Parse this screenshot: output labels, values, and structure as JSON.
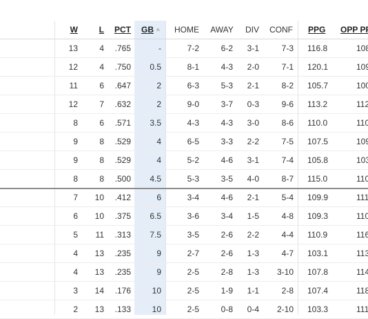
{
  "headers": {
    "w": "W",
    "l": "L",
    "pct": "PCT",
    "gb": "GB",
    "home": "HOME",
    "away": "AWAY",
    "div": "DIV",
    "conf": "CONF",
    "ppg": "PPG",
    "opp_ppg": "OPP PP"
  },
  "sort_icon": "^",
  "rows": [
    {
      "w": "13",
      "l": "4",
      "pct": ".765",
      "gb": "-",
      "home": "7-2",
      "away": "6-2",
      "div": "3-1",
      "conf": "7-3",
      "ppg": "116.8",
      "opp": "108"
    },
    {
      "w": "12",
      "l": "4",
      "pct": ".750",
      "gb": "0.5",
      "home": "8-1",
      "away": "4-3",
      "div": "2-0",
      "conf": "7-1",
      "ppg": "120.1",
      "opp": "109"
    },
    {
      "w": "11",
      "l": "6",
      "pct": ".647",
      "gb": "2",
      "home": "6-3",
      "away": "5-3",
      "div": "2-1",
      "conf": "8-2",
      "ppg": "105.7",
      "opp": "100"
    },
    {
      "w": "12",
      "l": "7",
      "pct": ".632",
      "gb": "2",
      "home": "9-0",
      "away": "3-7",
      "div": "0-3",
      "conf": "9-6",
      "ppg": "113.2",
      "opp": "112"
    },
    {
      "w": "8",
      "l": "6",
      "pct": ".571",
      "gb": "3.5",
      "home": "4-3",
      "away": "4-3",
      "div": "3-0",
      "conf": "8-6",
      "ppg": "110.0",
      "opp": "110"
    },
    {
      "w": "9",
      "l": "8",
      "pct": ".529",
      "gb": "4",
      "home": "6-5",
      "away": "3-3",
      "div": "2-2",
      "conf": "7-5",
      "ppg": "107.5",
      "opp": "109"
    },
    {
      "w": "9",
      "l": "8",
      "pct": ".529",
      "gb": "4",
      "home": "5-2",
      "away": "4-6",
      "div": "3-1",
      "conf": "7-4",
      "ppg": "105.8",
      "opp": "103"
    },
    {
      "w": "8",
      "l": "8",
      "pct": ".500",
      "gb": "4.5",
      "home": "5-3",
      "away": "3-5",
      "div": "4-0",
      "conf": "8-7",
      "ppg": "115.0",
      "opp": "110"
    },
    {
      "w": "7",
      "l": "10",
      "pct": ".412",
      "gb": "6",
      "home": "3-4",
      "away": "4-6",
      "div": "2-1",
      "conf": "5-4",
      "ppg": "109.9",
      "opp": "111"
    },
    {
      "w": "6",
      "l": "10",
      "pct": ".375",
      "gb": "6.5",
      "home": "3-6",
      "away": "3-4",
      "div": "1-5",
      "conf": "4-8",
      "ppg": "109.3",
      "opp": "110"
    },
    {
      "w": "5",
      "l": "11",
      "pct": ".313",
      "gb": "7.5",
      "home": "3-5",
      "away": "2-6",
      "div": "2-2",
      "conf": "4-4",
      "ppg": "110.9",
      "opp": "116"
    },
    {
      "w": "4",
      "l": "13",
      "pct": ".235",
      "gb": "9",
      "home": "2-7",
      "away": "2-6",
      "div": "1-3",
      "conf": "4-7",
      "ppg": "103.1",
      "opp": "113"
    },
    {
      "w": "4",
      "l": "13",
      "pct": ".235",
      "gb": "9",
      "home": "2-5",
      "away": "2-8",
      "div": "1-3",
      "conf": "3-10",
      "ppg": "107.8",
      "opp": "114"
    },
    {
      "w": "3",
      "l": "14",
      "pct": ".176",
      "gb": "10",
      "home": "2-5",
      "away": "1-9",
      "div": "1-1",
      "conf": "2-8",
      "ppg": "107.4",
      "opp": "118"
    },
    {
      "w": "2",
      "l": "13",
      "pct": ".133",
      "gb": "10",
      "home": "2-5",
      "away": "0-8",
      "div": "0-4",
      "conf": "2-10",
      "ppg": "103.3",
      "opp": "111"
    }
  ]
}
